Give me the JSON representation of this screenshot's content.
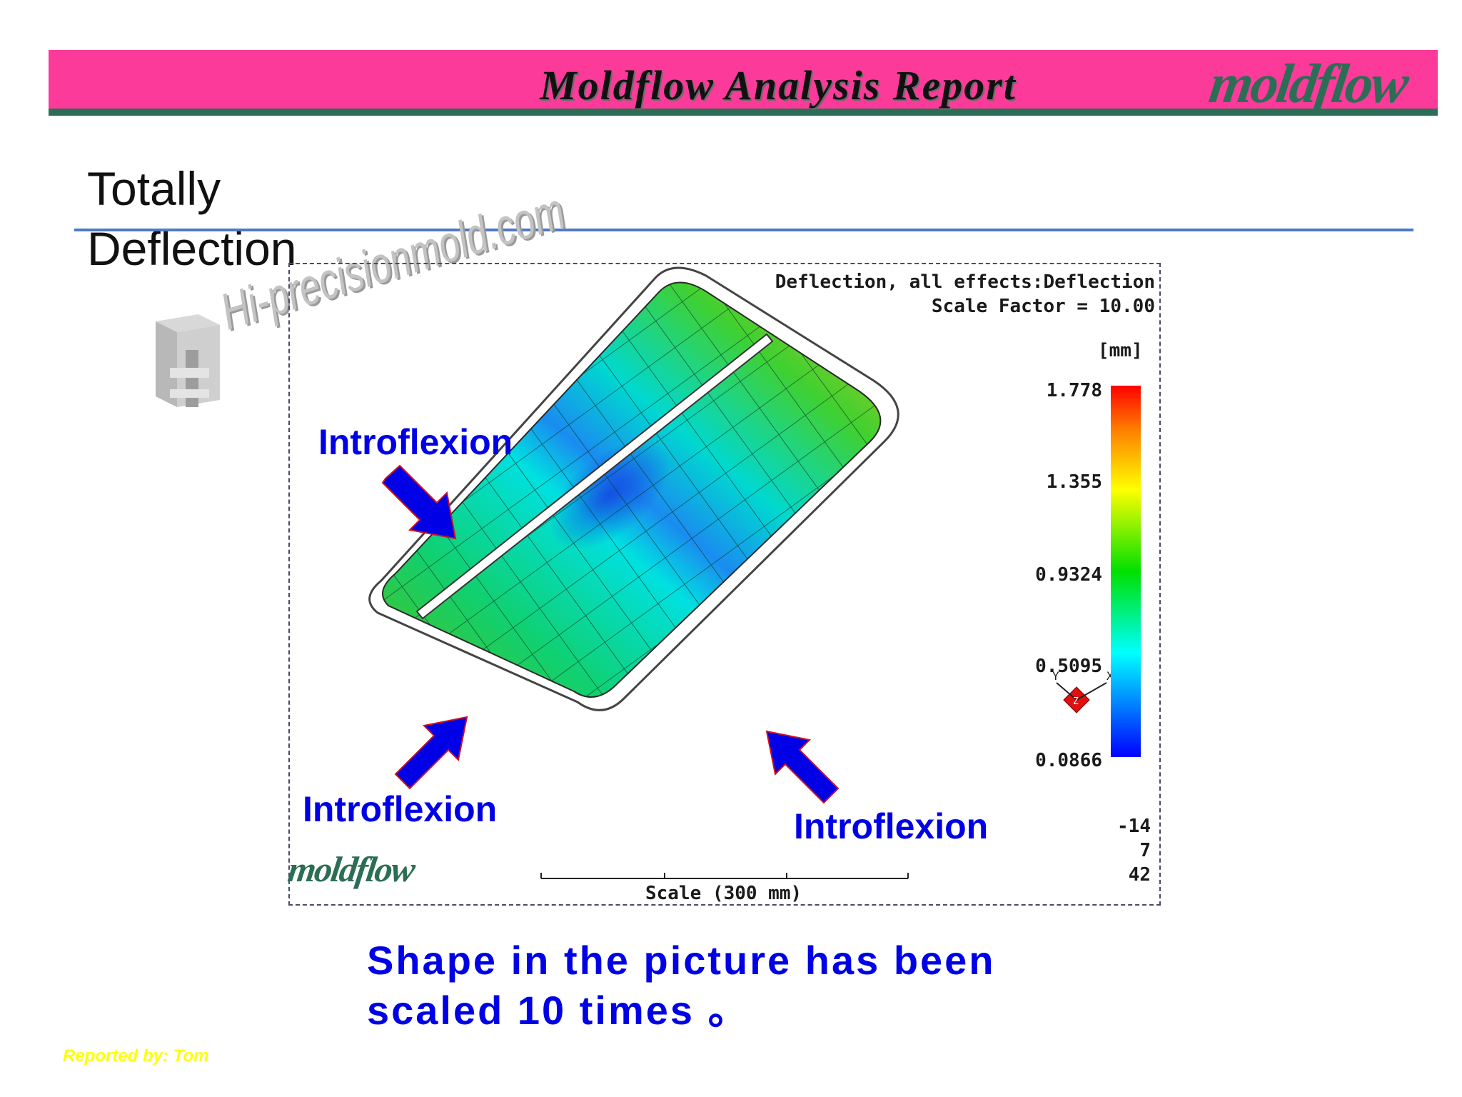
{
  "header": {
    "title": "Moldflow Analysis Report",
    "logo_text": "moldflow",
    "bar_color": "#fb3a9a",
    "accent_color": "#2c6e55"
  },
  "slide": {
    "title": "Totally\nDeflection"
  },
  "watermark": {
    "text": "Hi-precisionmold.com",
    "icon": "mold-component-icon"
  },
  "plot": {
    "title_line1": "Deflection, all effects:Deflection",
    "title_line2": "Scale Factor = 10.00",
    "legend": {
      "unit": "[mm]",
      "ticks": [
        "1.778",
        "1.355",
        "0.9324",
        "0.5095",
        "0.0866"
      ]
    },
    "orientation": {
      "x_label": "X",
      "y_label": "Y",
      "z_label": "Z",
      "values": [
        "-14",
        "7",
        "42"
      ]
    },
    "scale_label": "Scale (300 mm)",
    "logo_text": "moldflow"
  },
  "annotations": [
    {
      "label": "Introflexion"
    },
    {
      "label": "Introflexion"
    },
    {
      "label": "Introflexion"
    }
  ],
  "caption": "Shape in the picture has been\nscaled 10 times 。",
  "footer": {
    "reporter": "Reported by: Tom"
  }
}
